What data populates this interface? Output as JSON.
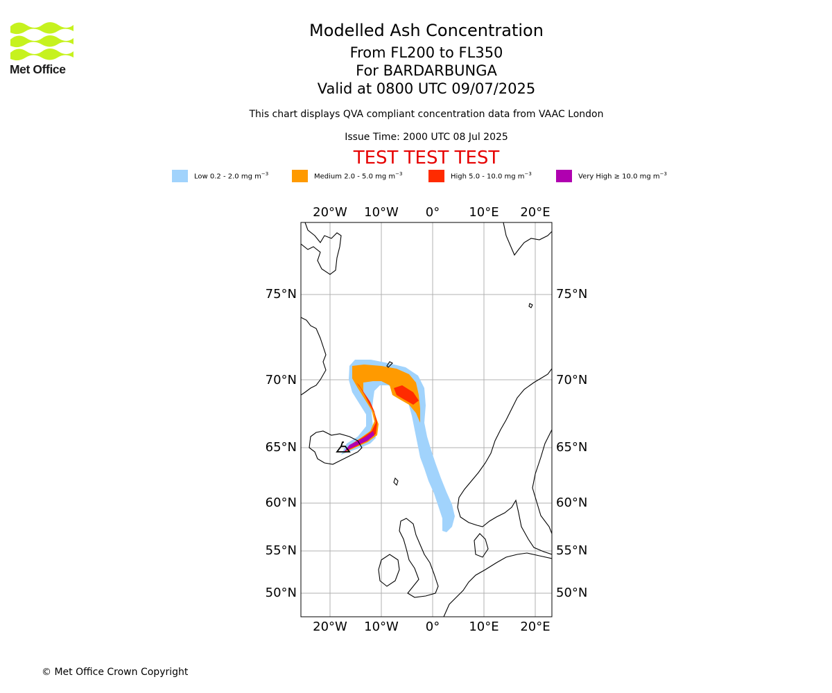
{
  "header": {
    "logo_text": "Met Office",
    "title": "Modelled Ash Concentration",
    "flight_levels": "From FL200 to FL350",
    "volcano": "For BARDARBUNGA",
    "valid_time": "Valid at 0800 UTC 09/07/2025",
    "description": "This chart displays QVA compliant concentration data from VAAC London",
    "issue_time": "Issue Time: 2000 UTC 08 Jul 2025",
    "test_banner": "TEST TEST TEST"
  },
  "legend": [
    {
      "name": "Low",
      "range": "0.2 - 2.0",
      "unit": "mg m",
      "exp": "−3",
      "color": "#a1d3fc"
    },
    {
      "name": "Medium",
      "range": "2.0 - 5.0",
      "unit": "mg m",
      "exp": "−3",
      "color": "#ff9a00"
    },
    {
      "name": "High",
      "range": "5.0 - 10.0",
      "unit": "mg m",
      "exp": "−3",
      "color": "#ff2b00"
    },
    {
      "name": "Very High",
      "range": "≥ 10.0",
      "unit": "mg m",
      "exp": "−3",
      "color": "#b000b0"
    }
  ],
  "map": {
    "lon_labels": [
      "20°W",
      "10°W",
      "0°",
      "10°E",
      "20°E"
    ],
    "lat_labels": [
      "75°N",
      "70°N",
      "65°N",
      "60°N",
      "55°N",
      "50°N"
    ],
    "gridline_color": "#b0b0b0",
    "coastline_color": "#000000"
  },
  "footer": {
    "copyright": "© Met Office Crown Copyright"
  }
}
